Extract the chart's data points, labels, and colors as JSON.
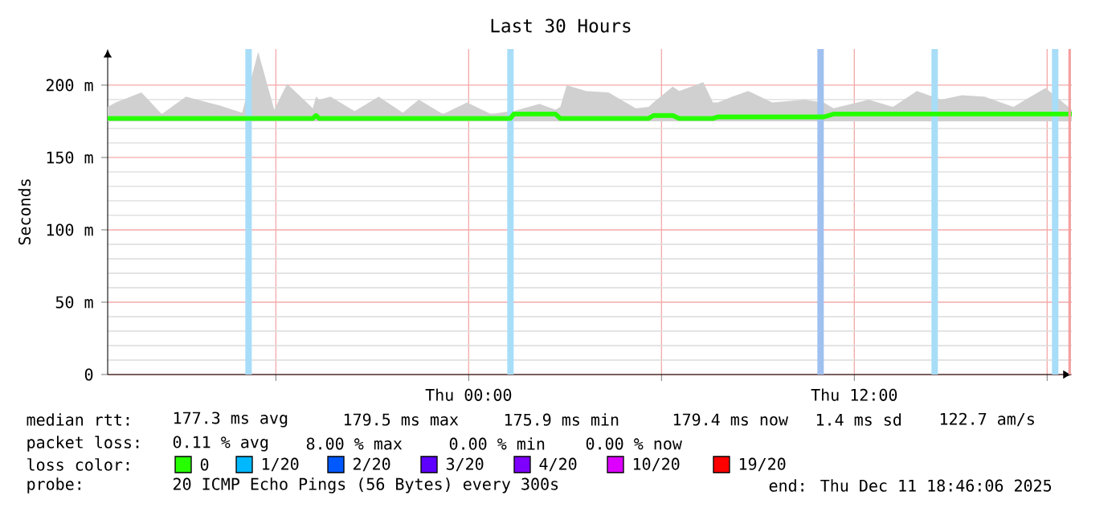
{
  "chart_data": {
    "type": "line",
    "title": "Last 30 Hours",
    "ylabel": "Seconds",
    "xlim": [
      "2025-12-10T12:46",
      "2025-12-11T18:46"
    ],
    "xticks": [
      {
        "value": "2025-12-10T18:00",
        "label": null
      },
      {
        "value": "2025-12-11T00:00",
        "label": "Thu 00:00"
      },
      {
        "value": "2025-12-11T06:00",
        "label": null
      },
      {
        "value": "2025-12-11T12:00",
        "label": "Thu 12:00"
      },
      {
        "value": "2025-12-11T18:00",
        "label": null
      }
    ],
    "ylim": [
      0,
      225
    ],
    "yticks": [
      0,
      {
        "value": 50,
        "label": "50 m"
      },
      {
        "value": 100,
        "label": "100 m"
      },
      {
        "value": 150,
        "label": "150 m"
      },
      {
        "value": 200,
        "label": "200 m"
      }
    ],
    "grid": true,
    "legend": "bottom",
    "legend_title": "loss color:",
    "line_style": "solid",
    "marker": "none",
    "series": [
      {
        "name": "0",
        "color": "#26ff00",
        "x": [
          "2025-12-10T12:46",
          "2025-12-10T13:01",
          "2025-12-10T13:49",
          "2025-12-10T14:27",
          "2025-12-10T15:12",
          "2025-12-10T16:15",
          "2025-12-10T16:57",
          "2025-12-10T17:27",
          "2025-12-10T17:57",
          "2025-12-10T18:21",
          "2025-12-10T19:09",
          "2025-12-10T19:15",
          "2025-12-10T19:21",
          "2025-12-10T19:42",
          "2025-12-10T20:27",
          "2025-12-10T21:12",
          "2025-12-10T21:57",
          "2025-12-10T22:27",
          "2025-12-10T23:12",
          "2025-12-10T23:57",
          "2025-12-11T00:42",
          "2025-12-11T01:18",
          "2025-12-11T01:24",
          "2025-12-11T02:12",
          "2025-12-11T02:42",
          "2025-12-11T02:51",
          "2025-12-11T03:03",
          "2025-12-11T03:39",
          "2025-12-11T04:21",
          "2025-12-11T05:12",
          "2025-12-11T05:36",
          "2025-12-11T05:45",
          "2025-12-11T06:21",
          "2025-12-11T06:33",
          "2025-12-11T07:18",
          "2025-12-11T07:36",
          "2025-12-11T07:45",
          "2025-12-11T08:12",
          "2025-12-11T08:42",
          "2025-12-11T09:27",
          "2025-12-11T10:27",
          "2025-12-11T11:03",
          "2025-12-11T11:21",
          "2025-12-11T12:27",
          "2025-12-11T13:12",
          "2025-12-11T13:57",
          "2025-12-11T14:42",
          "2025-12-11T15:21",
          "2025-12-11T16:03",
          "2025-12-11T16:57",
          "2025-12-11T17:57",
          "2025-12-11T18:46"
        ],
        "values": [
          177,
          177,
          177,
          177,
          177,
          177,
          177,
          177,
          177,
          177,
          177,
          179,
          177,
          177,
          177,
          177,
          177,
          177,
          177,
          177,
          177,
          177,
          180,
          180,
          180,
          177,
          177,
          177,
          177,
          177,
          177,
          179,
          179,
          177,
          177,
          177,
          178,
          178,
          178,
          178,
          178,
          178,
          180,
          180,
          180,
          180,
          180,
          180,
          180,
          180,
          180,
          180
        ],
        "lower": [
          175,
          175,
          175,
          175,
          175,
          175,
          175,
          175,
          175,
          175,
          175,
          175,
          175,
          175,
          175,
          175,
          175,
          175,
          175,
          175,
          175,
          175,
          175,
          175,
          175,
          175,
          175,
          175,
          175,
          175,
          175,
          175,
          175,
          175,
          175,
          175,
          175,
          175,
          175,
          175,
          175,
          175,
          175,
          175,
          175,
          175,
          175,
          175,
          175,
          175,
          175,
          175
        ],
        "upper": [
          185,
          188,
          195,
          180,
          192,
          186,
          181,
          223,
          183,
          201,
          184,
          192,
          190,
          192,
          182,
          192,
          181,
          190,
          180,
          188,
          180,
          182,
          182,
          187,
          183,
          185,
          200,
          196,
          195,
          184,
          185,
          188,
          199,
          196,
          202,
          188,
          188,
          192,
          196,
          188,
          190,
          188,
          184,
          190,
          185,
          196,
          190,
          193,
          192,
          185,
          198,
          183
        ]
      },
      {
        "name": "1/20",
        "color": "#00b8ff"
      },
      {
        "name": "2/20",
        "color": "#0059ff"
      },
      {
        "name": "3/20",
        "color": "#5e00ff"
      },
      {
        "name": "4/20",
        "color": "#7e00ff"
      },
      {
        "name": "10/20",
        "color": "#dd00ff"
      },
      {
        "name": "19/20",
        "color": "#ff0000"
      }
    ],
    "bands": [
      {
        "axis": "x",
        "from": "2025-12-10T17:03",
        "to": "2025-12-10T17:15",
        "color": "#a8ddf8"
      },
      {
        "axis": "x",
        "from": "2025-12-11T01:12",
        "to": "2025-12-11T01:24",
        "color": "#a8ddf8"
      },
      {
        "axis": "x",
        "from": "2025-12-11T10:51",
        "to": "2025-12-11T11:03",
        "color": "#a0c0f0"
      },
      {
        "axis": "x",
        "from": "2025-12-11T14:24",
        "to": "2025-12-11T14:36",
        "color": "#a8ddf8"
      },
      {
        "axis": "x",
        "from": "2025-12-11T18:09",
        "to": "2025-12-11T18:21",
        "color": "#a8ddf8"
      }
    ],
    "ref_lines": [
      {
        "axis": "x",
        "value": "2025-12-11T18:42",
        "color": "#f4a0a0"
      }
    ],
    "annotations": [
      "median rtt:",
      "177.3 ms avg",
      "179.5 ms max",
      "175.9 ms min",
      "179.4 ms now",
      "1.4 ms sd",
      "122.7 am/s",
      "packet loss:",
      "0.11 % avg",
      "8.00 % max",
      "0.00 % min",
      "0.00 % now",
      "probe:",
      "20 ICMP Echo Pings (56 Bytes) every 300s",
      "end: Thu Dec 11 18:46:06 2025"
    ]
  }
}
